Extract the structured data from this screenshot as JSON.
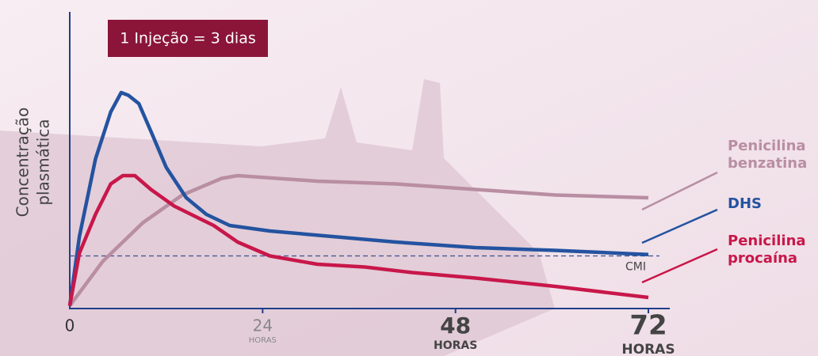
{
  "chart_data": {
    "type": "line",
    "title": "1 Injeção = 3 dias",
    "ylabel": [
      "Concentração",
      "plasmática"
    ],
    "x_unit": "HORAS",
    "xlim": [
      0,
      72
    ],
    "xticks": [
      0,
      24,
      48,
      72
    ],
    "ylim": [
      0,
      100
    ],
    "reference_line": {
      "label": "CMI",
      "value": 19
    },
    "series": [
      {
        "name": "Penicilina benzatina",
        "color": "#b98ea2",
        "x": [
          0,
          4.1,
          9.1,
          14,
          18.9,
          20.9,
          30.8,
          40.6,
          50.5,
          60.4,
          72
        ],
        "values": [
          1,
          17,
          31,
          41,
          47,
          48,
          46,
          45,
          43,
          41,
          40
        ]
      },
      {
        "name": "DHS",
        "color": "#2453a0",
        "x": [
          0,
          1.2,
          3.2,
          5.1,
          6.4,
          7.3,
          8.6,
          10.1,
          12,
          14.5,
          17,
          19.9,
          24.9,
          32.7,
          40.6,
          50.5,
          60.4,
          72
        ],
        "values": [
          1,
          26,
          54,
          71,
          78,
          77,
          74,
          64,
          51,
          40,
          34,
          30,
          28,
          26,
          24,
          22,
          21,
          19.5
        ]
      },
      {
        "name": "Penicilina procaína",
        "color": "#c8174a",
        "x": [
          0,
          1.2,
          3.2,
          5.1,
          6.6,
          8.1,
          10.1,
          13,
          17.9,
          20.9,
          24.9,
          30.8,
          36.7,
          42.6,
          50.5,
          60.4,
          72
        ],
        "values": [
          1,
          20,
          34,
          45,
          48,
          48,
          43,
          37,
          30,
          24,
          19,
          16,
          15,
          13,
          11,
          8,
          4
        ]
      }
    ]
  }
}
